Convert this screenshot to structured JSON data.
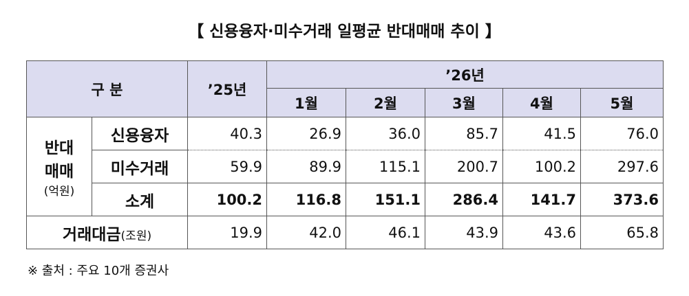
{
  "title": "【 신용융자·미수거래 일평균 반대매매 추이 】",
  "table": {
    "header": {
      "category": "구 분",
      "prev_year": "’25년",
      "cur_year": "’26년",
      "months": [
        "1월",
        "2월",
        "3월",
        "4월",
        "5월"
      ]
    },
    "group": {
      "line1": "반대",
      "line2": "매매",
      "unit": "(억원)"
    },
    "rows": [
      {
        "label": "신용융자",
        "values": [
          "40.3",
          "26.9",
          "36.0",
          "85.7",
          "41.5",
          "76.0"
        ]
      },
      {
        "label": "미수거래",
        "values": [
          "59.9",
          "89.9",
          "115.1",
          "200.7",
          "100.2",
          "297.6"
        ]
      },
      {
        "label": "소계",
        "values": [
          "100.2",
          "116.8",
          "151.1",
          "286.4",
          "141.7",
          "373.6"
        ]
      }
    ],
    "trading": {
      "label": "거래대금",
      "unit": "(조원)",
      "values": [
        "19.9",
        "42.0",
        "46.1",
        "43.9",
        "43.6",
        "65.8"
      ]
    }
  },
  "footnote": "※ 출처 : 주요 10개 증권사"
}
